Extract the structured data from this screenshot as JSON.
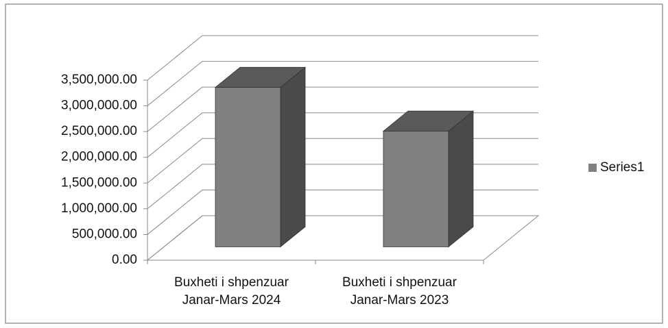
{
  "chart_data": {
    "type": "bar3d",
    "categories": [
      "Buxheti i shpenzuar Janar-Mars 2024",
      "Buxheti i shpenzuar Janar-Mars 2023"
    ],
    "series": [
      {
        "name": "Series1",
        "color": "#808080",
        "values": [
          3100000,
          2250000
        ]
      }
    ],
    "ylim": [
      0,
      3500000
    ],
    "yticks": [
      {
        "value": 0,
        "label": "0.00"
      },
      {
        "value": 500000,
        "label": "500,000.00"
      },
      {
        "value": 1000000,
        "label": "1,000,000.00"
      },
      {
        "value": 1500000,
        "label": "1,500,000.00"
      },
      {
        "value": 2000000,
        "label": "2,000,000.00"
      },
      {
        "value": 2500000,
        "label": "2,500,000.00"
      },
      {
        "value": 3000000,
        "label": "3,000,000.00"
      },
      {
        "value": 3500000,
        "label": "3,500,000.00"
      }
    ],
    "grid": true,
    "legend": "right"
  }
}
